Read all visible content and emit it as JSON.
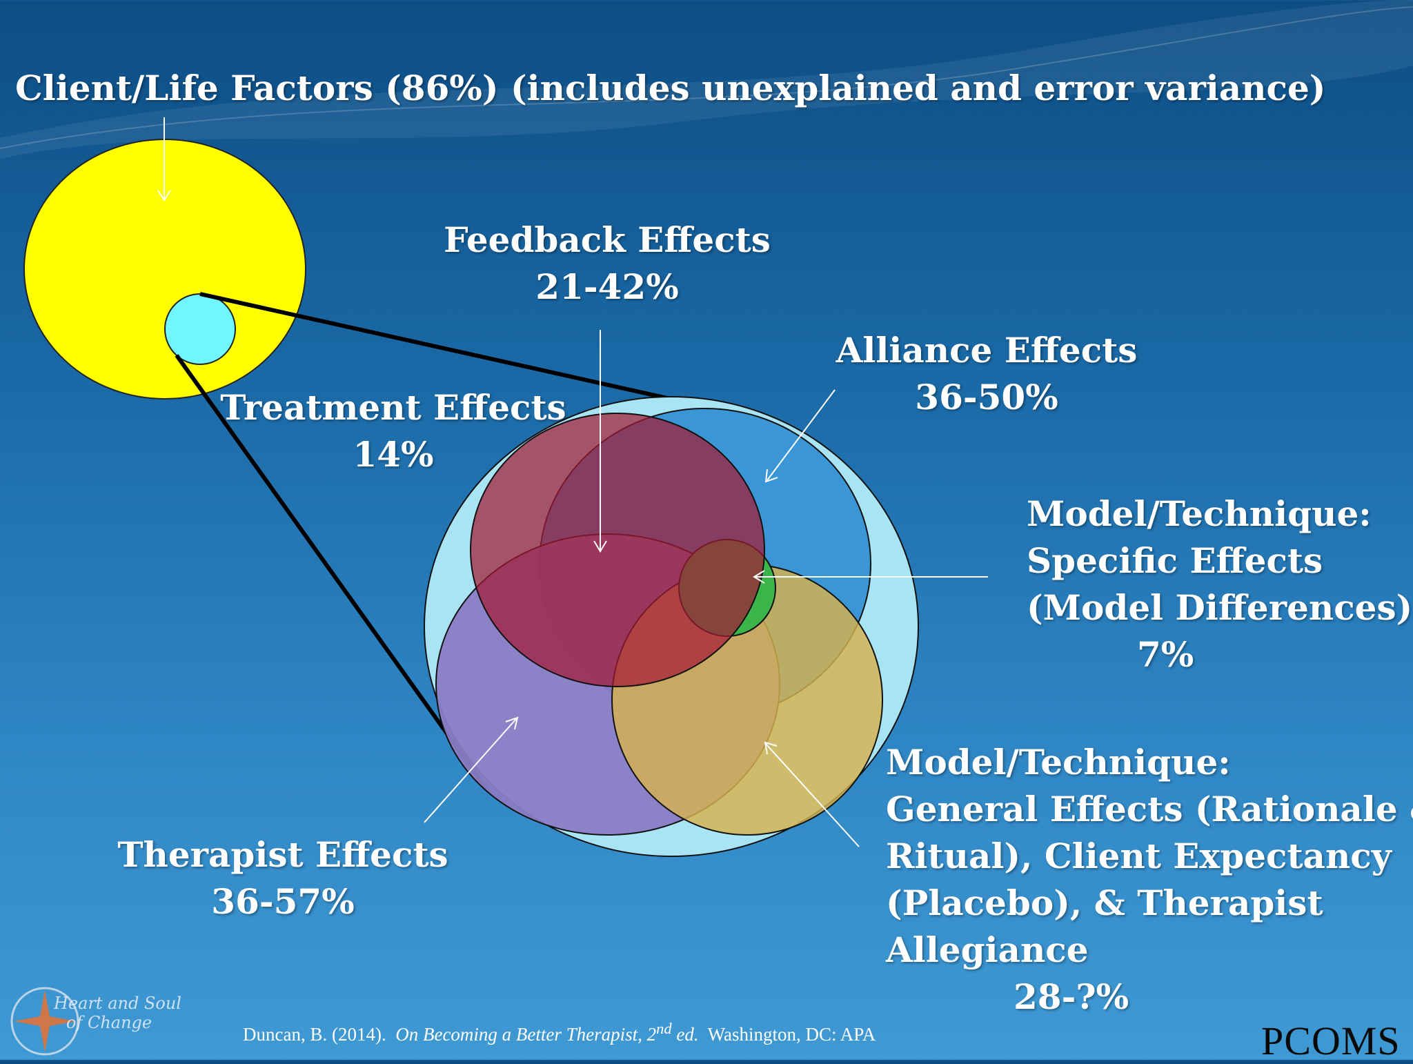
{
  "labels": {
    "client_life": "Client/Life Factors (86%) (includes unexplained and error variance)",
    "feedback": {
      "title": "Feedback Effects",
      "value": "21-42%"
    },
    "alliance": {
      "title": "Alliance Effects",
      "value": "36-50%"
    },
    "treatment": {
      "title": "Treatment Effects",
      "value": "14%"
    },
    "specific": {
      "line1": "Model/Technique:",
      "line2": "Specific Effects",
      "line3": "(Model Differences)",
      "value": "7%"
    },
    "general": {
      "line1": "Model/Technique:",
      "line2": "General Effects (Rationale &",
      "line3": "Ritual), Client Expectancy",
      "line4": "(Placebo), & Therapist",
      "line5": "Allegiance",
      "value": "28-?%"
    },
    "therapist": {
      "title": "Therapist Effects",
      "value": "36-57%"
    }
  },
  "citation": {
    "author": "Duncan, B. (2014).",
    "title_a": "On Becoming a Better Therapist, 2",
    "sup": "nd",
    "title_b": " ed.",
    "publisher": "Washington, DC: APA"
  },
  "logos": {
    "left_line1": "Heart and Soul",
    "left_line2": "of Change",
    "right": "PCOMS"
  },
  "colors": {
    "client_circle": "#ffff00",
    "treatment_circle": "#6ff6ff",
    "outer_treatment": "#a8e4f4",
    "alliance": "#3a96d4",
    "therapist": "#8a7cc4",
    "general": "#d7b24e",
    "feedback": "#a41a34",
    "specific": "#3bb54a"
  }
}
